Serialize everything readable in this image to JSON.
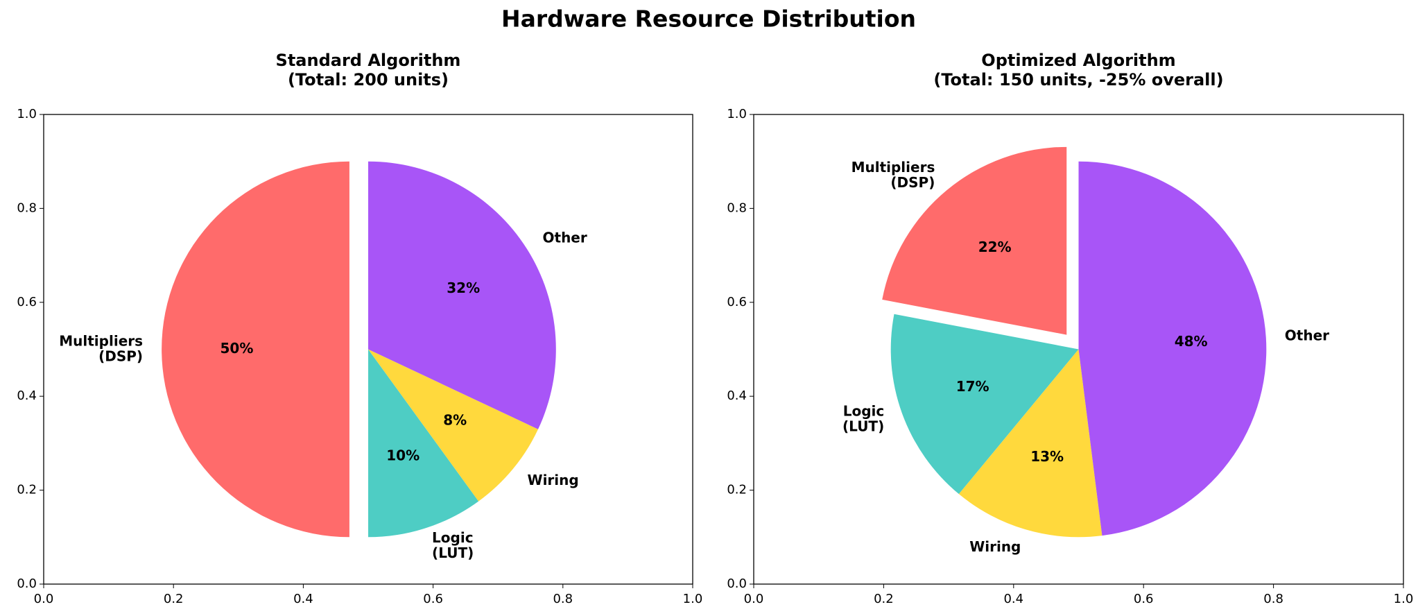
{
  "title": "Hardware Resource Distribution",
  "chart_data": [
    {
      "type": "pie",
      "title": "Standard Algorithm\n(Total: 200 units)",
      "categories": [
        "Multipliers\n(DSP)",
        "Logic\n(LUT)",
        "Wiring",
        "Other"
      ],
      "values": [
        50,
        10,
        8,
        32
      ],
      "value_labels": [
        "50%",
        "10%",
        "8%",
        "32%"
      ],
      "colors": [
        "#ff6b6b",
        "#4ecdc4",
        "#ffd93d",
        "#a855f7"
      ],
      "explode": [
        true,
        false,
        false,
        false
      ],
      "startangle": 90,
      "direction": "counterclockwise",
      "xlim": [
        0,
        1
      ],
      "ylim": [
        0,
        1
      ],
      "xticks": [
        {
          "value": 0,
          "label": "0.0"
        },
        {
          "value": 0.2,
          "label": "0.2"
        },
        {
          "value": 0.4,
          "label": "0.4"
        },
        {
          "value": 0.6,
          "label": "0.6"
        },
        {
          "value": 0.8,
          "label": "0.8"
        },
        {
          "value": 1,
          "label": "1.0"
        }
      ],
      "yticks": [
        {
          "value": 0,
          "label": "0.0"
        },
        {
          "value": 0.2,
          "label": "0.2"
        },
        {
          "value": 0.4,
          "label": "0.4"
        },
        {
          "value": 0.6,
          "label": "0.6"
        },
        {
          "value": 0.8,
          "label": "0.8"
        },
        {
          "value": 1,
          "label": "1.0"
        }
      ]
    },
    {
      "type": "pie",
      "title": "Optimized Algorithm\n(Total: 150 units, -25% overall)",
      "categories": [
        "Multipliers\n(DSP)",
        "Logic\n(LUT)",
        "Wiring",
        "Other"
      ],
      "values": [
        22,
        17,
        13,
        48
      ],
      "value_labels": [
        "22%",
        "17%",
        "13%",
        "48%"
      ],
      "colors": [
        "#ff6b6b",
        "#4ecdc4",
        "#ffd93d",
        "#a855f7"
      ],
      "explode": [
        true,
        false,
        false,
        false
      ],
      "startangle": 90,
      "direction": "counterclockwise",
      "xlim": [
        0,
        1
      ],
      "ylim": [
        0,
        1
      ],
      "xticks": [
        {
          "value": 0,
          "label": "0.0"
        },
        {
          "value": 0.2,
          "label": "0.2"
        },
        {
          "value": 0.4,
          "label": "0.4"
        },
        {
          "value": 0.6,
          "label": "0.6"
        },
        {
          "value": 0.8,
          "label": "0.8"
        },
        {
          "value": 1,
          "label": "1.0"
        }
      ],
      "yticks": [
        {
          "value": 0,
          "label": "0.0"
        },
        {
          "value": 0.2,
          "label": "0.2"
        },
        {
          "value": 0.4,
          "label": "0.4"
        },
        {
          "value": 0.6,
          "label": "0.6"
        },
        {
          "value": 0.8,
          "label": "0.8"
        },
        {
          "value": 1,
          "label": "1.0"
        }
      ]
    }
  ]
}
